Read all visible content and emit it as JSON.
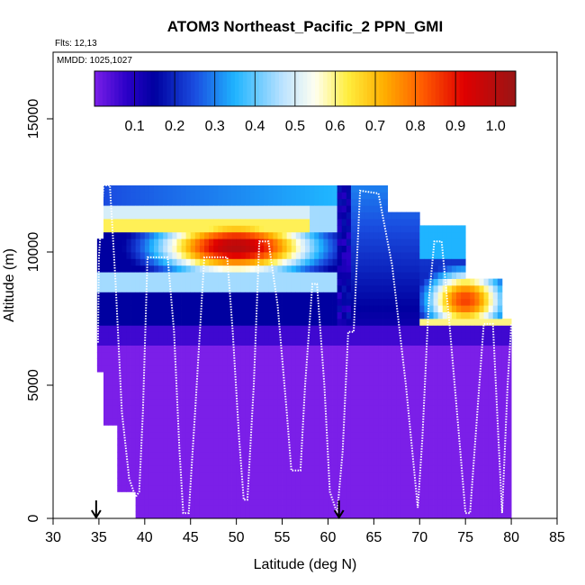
{
  "chart_data": {
    "type": "heatmap",
    "title": "ATOM3 Northeast_Pacific_2 PPN_GMI",
    "flights_label": "Flts: 12,13",
    "dates_label": "MMDD: 1025,1027",
    "xlabel": "Latitude (deg N)",
    "ylabel": "Altitude (m)",
    "xlim": [
      30,
      85
    ],
    "ylim": [
      0,
      17500
    ],
    "x_ticks": [
      "30",
      "35",
      "40",
      "45",
      "50",
      "55",
      "60",
      "65",
      "70",
      "75",
      "80",
      "85"
    ],
    "y_ticks": [
      "0",
      "5000",
      "10000",
      "15000"
    ],
    "colorbar": {
      "range": [
        0.0,
        1.05
      ],
      "tick_labels": [
        "0.1",
        "0.2",
        "0.3",
        "0.4",
        "0.5",
        "0.6",
        "0.7",
        "0.8",
        "0.9",
        "1.0"
      ],
      "tick_values": [
        0.1,
        0.2,
        0.3,
        0.4,
        0.5,
        0.6,
        0.7,
        0.8,
        0.9,
        1.0
      ],
      "stops": [
        {
          "v": 0.0,
          "c": "#7b1fe8"
        },
        {
          "v": 0.08,
          "c": "#2b00c8"
        },
        {
          "v": 0.15,
          "c": "#0000a0"
        },
        {
          "v": 0.25,
          "c": "#1a4de0"
        },
        {
          "v": 0.35,
          "c": "#1fb4ff"
        },
        {
          "v": 0.47,
          "c": "#bde3ff"
        },
        {
          "v": 0.55,
          "c": "#fffff0"
        },
        {
          "v": 0.63,
          "c": "#ffee40"
        },
        {
          "v": 0.72,
          "c": "#ffb000"
        },
        {
          "v": 0.82,
          "c": "#ff5a00"
        },
        {
          "v": 0.92,
          "c": "#e00000"
        },
        {
          "v": 1.05,
          "c": "#9a1515"
        }
      ]
    },
    "cell_width_deg": 0.5,
    "cell_height_m": 250,
    "columns": [
      {
        "from": 34.8,
        "to": 35.5,
        "top": 10500,
        "bottom": 5500
      },
      {
        "from": 35.5,
        "to": 37.0,
        "top": 12500,
        "bottom": 3500
      },
      {
        "from": 37.0,
        "to": 39.0,
        "top": 12500,
        "bottom": 1000
      },
      {
        "from": 39.0,
        "to": 62.0,
        "top": 12500,
        "bottom": 0
      },
      {
        "from": 62.0,
        "to": 66.5,
        "top": 12500,
        "bottom": 0
      },
      {
        "from": 66.5,
        "to": 70.0,
        "top": 11500,
        "bottom": 0
      },
      {
        "from": 70.0,
        "to": 75.0,
        "top": 11000,
        "bottom": 0
      },
      {
        "from": 75.0,
        "to": 79.0,
        "top": 9000,
        "bottom": 0
      },
      {
        "from": 79.0,
        "to": 80.0,
        "top": 7500,
        "bottom": 0
      }
    ],
    "features": [
      {
        "name": "upper-plume-core",
        "lat_from": 36,
        "lat_to": 60,
        "alt_from": 8000,
        "alt_to": 12000,
        "peak": 1.0,
        "peak_lat": 50,
        "peak_alt": 10200
      },
      {
        "name": "arctic-plume",
        "lat_from": 71,
        "lat_to": 80,
        "alt_from": 7200,
        "alt_to": 10000,
        "peak": 0.85,
        "peak_lat": 75,
        "peak_alt": 8200
      }
    ],
    "flight_track": [
      [
        34.9,
        6600
      ],
      [
        35.0,
        9800
      ],
      [
        35.5,
        12500
      ],
      [
        36.2,
        12500
      ],
      [
        36.8,
        9000
      ],
      [
        37.5,
        4000
      ],
      [
        38.3,
        1500
      ],
      [
        39.0,
        800
      ],
      [
        39.4,
        1000
      ],
      [
        39.8,
        4000
      ],
      [
        40.3,
        9800
      ],
      [
        42.5,
        9800
      ],
      [
        43.2,
        7000
      ],
      [
        43.8,
        2500
      ],
      [
        44.2,
        200
      ],
      [
        44.8,
        200
      ],
      [
        45.5,
        4000
      ],
      [
        46.5,
        9800
      ],
      [
        49.0,
        9800
      ],
      [
        49.6,
        7000
      ],
      [
        50.3,
        3000
      ],
      [
        50.8,
        700
      ],
      [
        51.2,
        700
      ],
      [
        51.9,
        5000
      ],
      [
        52.5,
        10400
      ],
      [
        53.5,
        10400
      ],
      [
        54.5,
        8000
      ],
      [
        55.5,
        4000
      ],
      [
        56.0,
        1800
      ],
      [
        57.0,
        1800
      ],
      [
        57.5,
        5000
      ],
      [
        58.3,
        8800
      ],
      [
        58.8,
        8800
      ],
      [
        59.6,
        5000
      ],
      [
        60.2,
        1000
      ],
      [
        61.0,
        200
      ],
      [
        61.6,
        2500
      ],
      [
        62.2,
        7000
      ],
      [
        62.8,
        7000
      ],
      [
        63.5,
        12300
      ],
      [
        65.5,
        12200
      ],
      [
        67.0,
        9500
      ],
      [
        68.5,
        5000
      ],
      [
        69.8,
        400
      ],
      [
        70.3,
        3000
      ],
      [
        71.0,
        8200
      ],
      [
        71.6,
        10400
      ],
      [
        72.4,
        10400
      ],
      [
        73.2,
        7500
      ],
      [
        74.2,
        3500
      ],
      [
        75.0,
        200
      ],
      [
        75.5,
        200
      ],
      [
        76.3,
        4000
      ],
      [
        77.0,
        7300
      ],
      [
        78.0,
        7300
      ],
      [
        78.6,
        3000
      ],
      [
        79.0,
        200
      ],
      [
        79.6,
        5000
      ],
      [
        80.0,
        7300
      ]
    ],
    "marker_arrows": [
      34.7,
      61.2
    ]
  }
}
